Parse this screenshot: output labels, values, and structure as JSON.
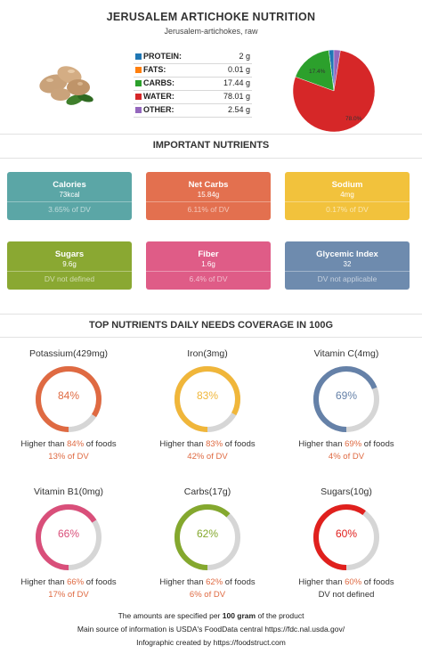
{
  "header": {
    "title": "JERUSALEM ARTICHOKE NUTRITION",
    "subtitle": "Jerusalem-artichokes, raw"
  },
  "macros": [
    {
      "label": "PROTEIN:",
      "value": "2 g",
      "color": "#1f77b4"
    },
    {
      "label": "FATS:",
      "value": "0.01 g",
      "color": "#ff7f0e"
    },
    {
      "label": "CARBS:",
      "value": "17.44 g",
      "color": "#2ca02c"
    },
    {
      "label": "WATER:",
      "value": "78.01 g",
      "color": "#d62728"
    },
    {
      "label": "OTHER:",
      "value": "2.54 g",
      "color": "#9467bd"
    }
  ],
  "pie": {
    "labels": {
      "carbs": "17.4%",
      "water": "78.0%"
    },
    "slices": [
      {
        "name": "PROTEIN",
        "fraction": 0.02,
        "color": "#1f77b4"
      },
      {
        "name": "FATS",
        "fraction": 0.0001,
        "color": "#ff7f0e"
      },
      {
        "name": "CARBS",
        "fraction": 0.1744,
        "color": "#2ca02c"
      },
      {
        "name": "WATER",
        "fraction": 0.7801,
        "color": "#d62728"
      },
      {
        "name": "OTHER",
        "fraction": 0.0254,
        "color": "#9467bd"
      }
    ]
  },
  "important": {
    "heading": "IMPORTANT NUTRIENTS",
    "cards": [
      {
        "name": "Calories",
        "value": "73kcal",
        "dv": "3.65% of DV",
        "color": "#5ba6a6"
      },
      {
        "name": "Net Carbs",
        "value": "15.84g",
        "dv": "6.11% of DV",
        "color": "#e3704f"
      },
      {
        "name": "Sodium",
        "value": "4mg",
        "dv": "0.17% of DV",
        "color": "#f2c23c"
      },
      {
        "name": "Sugars",
        "value": "9.6g",
        "dv": "DV not defined",
        "color": "#8aa832"
      },
      {
        "name": "Fiber",
        "value": "1.6g",
        "dv": "6.4% of DV",
        "color": "#df5c87"
      },
      {
        "name": "Glycemic Index",
        "value": "32",
        "dv": "DV not applicable",
        "color": "#6e8bae"
      }
    ]
  },
  "coverage": {
    "heading": "TOP NUTRIENTS DAILY NEEDS COVERAGE IN 100G",
    "items": [
      {
        "name": "Potassium(429mg)",
        "pct": "84%",
        "fraction": 0.84,
        "line1_pre": "Higher than ",
        "line1_pct": "84%",
        "line1_post": " of foods",
        "line2": "13% of DV",
        "color": "#df6a42"
      },
      {
        "name": "Iron(3mg)",
        "pct": "83%",
        "fraction": 0.83,
        "line1_pre": "Higher than ",
        "line1_pct": "83%",
        "line1_post": " of foods",
        "line2": "42% of DV",
        "color": "#f0b63a"
      },
      {
        "name": "Vitamin C(4mg)",
        "pct": "69%",
        "fraction": 0.69,
        "line1_pre": "Higher than ",
        "line1_pct": "69%",
        "line1_post": " of foods",
        "line2": "4% of DV",
        "color": "#6581a8"
      },
      {
        "name": "Vitamin B1(0mg)",
        "pct": "66%",
        "fraction": 0.66,
        "line1_pre": "Higher than ",
        "line1_pct": "66%",
        "line1_post": " of foods",
        "line2": "17% of DV",
        "color": "#d94f7a"
      },
      {
        "name": "Carbs(17g)",
        "pct": "62%",
        "fraction": 0.62,
        "line1_pre": "Higher than ",
        "line1_pct": "62%",
        "line1_post": " of foods",
        "line2": "6% of DV",
        "color": "#84a82e"
      },
      {
        "name": "Sugars(10g)",
        "pct": "60%",
        "fraction": 0.6,
        "line1_pre": "Higher than ",
        "line1_pct": "60%",
        "line1_post": " of foods",
        "line2": "DV not defined",
        "color": "#e0201d"
      }
    ]
  },
  "footer": {
    "line1_pre": "The amounts are specified per ",
    "line1_bold": "100 gram",
    "line1_post": " of the product",
    "line2": "Main source of information is USDA's FoodData central https://fdc.nal.usda.gov/",
    "line3": "Infographic created by https://foodstruct.com"
  }
}
